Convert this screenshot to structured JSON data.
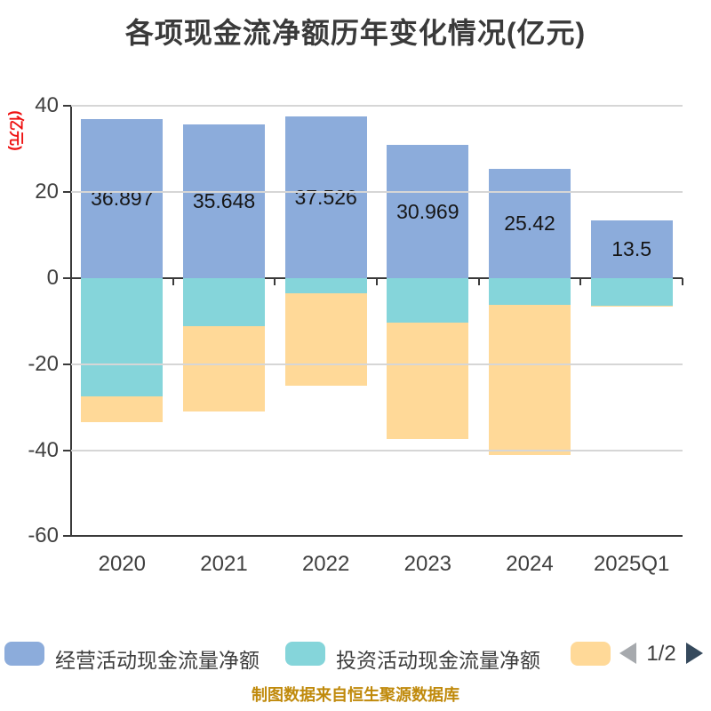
{
  "title": "各项现金流净额历年变化情况(亿元)",
  "footer": "制图数据来自恒生聚源数据库",
  "y_axis": {
    "name": "(亿元)",
    "ticks": [
      "40",
      "20",
      "0",
      "-20",
      "-40",
      "-60"
    ]
  },
  "legend": {
    "items": [
      {
        "label": "经营活动现金流量净额",
        "color": "#8CACDB"
      },
      {
        "label": "投资活动现金流量净额",
        "color": "#85D5DA"
      },
      {
        "label": "",
        "color": "#FFD998"
      }
    ],
    "pager": {
      "text": "1/2",
      "prev_color": "#A6A9AD",
      "next_color": "#35495C"
    }
  },
  "colors": {
    "operating_bar": "#8CACDB",
    "investing_bar": "#85D5DA",
    "financing_bar": "#FFD998",
    "grid_line": "#d6d6d6",
    "axis_line": "#3a3a3a",
    "tick_label": "#404040",
    "title_text": "#3a3a3a",
    "y_name_red": "#ee1111",
    "footer_gold": "#c08a0c",
    "background": "#ffffff"
  },
  "chart_data": {
    "type": "bar",
    "stacked": true,
    "title": "各项现金流净额历年变化情况(亿元)",
    "ylabel": "(亿元)",
    "ylim": [
      -60,
      40
    ],
    "yticks": [
      40,
      20,
      0,
      -20,
      -40,
      -60
    ],
    "grid": true,
    "legend_position": "bottom",
    "categories": [
      "2020",
      "2021",
      "2022",
      "2023",
      "2024",
      "2025Q1"
    ],
    "series": [
      {
        "name": "经营活动现金流量净额",
        "color": "#8CACDB",
        "values": [
          36.897,
          35.648,
          37.526,
          30.969,
          25.42,
          13.5
        ],
        "data_labels": [
          "36.897",
          "35.648",
          "37.526",
          "30.969",
          "25.42",
          "13.5"
        ]
      },
      {
        "name": "投资活动现金流量净额",
        "color": "#85D5DA",
        "values": [
          -27.4,
          -11.2,
          -3.5,
          -10.3,
          -6.2,
          -6.4
        ]
      },
      {
        "name": "",
        "color": "#FFD998",
        "values": [
          -6.0,
          -19.8,
          -21.4,
          -27.0,
          -34.9,
          -0.3
        ]
      }
    ]
  }
}
